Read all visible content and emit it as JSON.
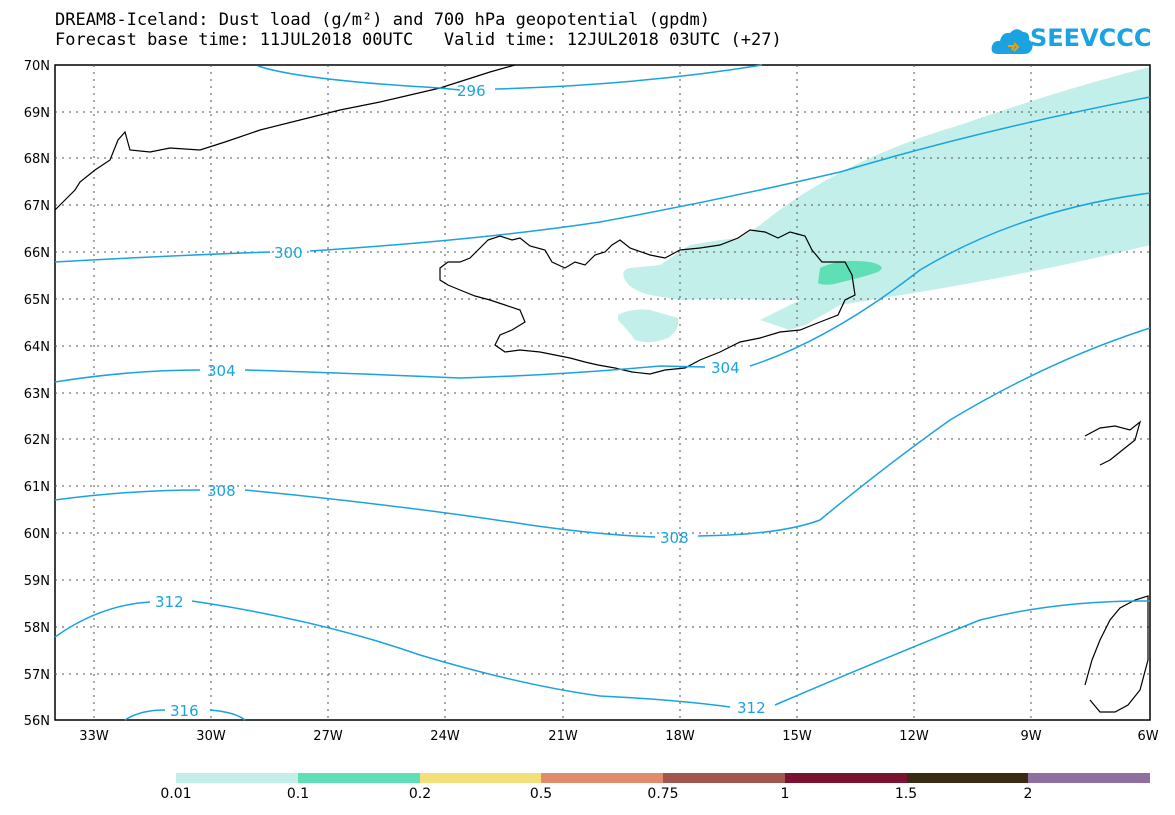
{
  "header": {
    "title_line1": "DREAM8-Iceland: Dust load (g/m²) and 700 hPa geopotential (gpdm)",
    "title_line2": "Forecast base time: 11JUL2018 00UTC   Valid time: 12JUL2018 03UTC (+27)"
  },
  "logo": {
    "text": "SEEVCCC",
    "icon": "cloud-icon",
    "color": "#1aa3e0"
  },
  "map": {
    "lat_labels": [
      "70N",
      "69N",
      "68N",
      "67N",
      "66N",
      "65N",
      "64N",
      "63N",
      "62N",
      "61N",
      "60N",
      "59N",
      "58N",
      "57N",
      "56N"
    ],
    "lon_labels": [
      "33W",
      "30W",
      "27W",
      "24W",
      "21W",
      "18W",
      "15W",
      "12W",
      "9W",
      "6W"
    ],
    "contour_labels": [
      "296",
      "300",
      "304",
      "304",
      "308",
      "308",
      "312",
      "312",
      "316"
    ],
    "contour_color": "#1aa3e0"
  },
  "colorbar": {
    "colors": [
      "#c2efe9",
      "#5fdfb6",
      "#f4e07a",
      "#e08c6a",
      "#a3564c",
      "#7a1230",
      "#3a2a14",
      "#8e6fa0"
    ],
    "labels": [
      "0.01",
      "0.1",
      "0.2",
      "0.5",
      "0.75",
      "1",
      "1.5",
      "2"
    ]
  }
}
